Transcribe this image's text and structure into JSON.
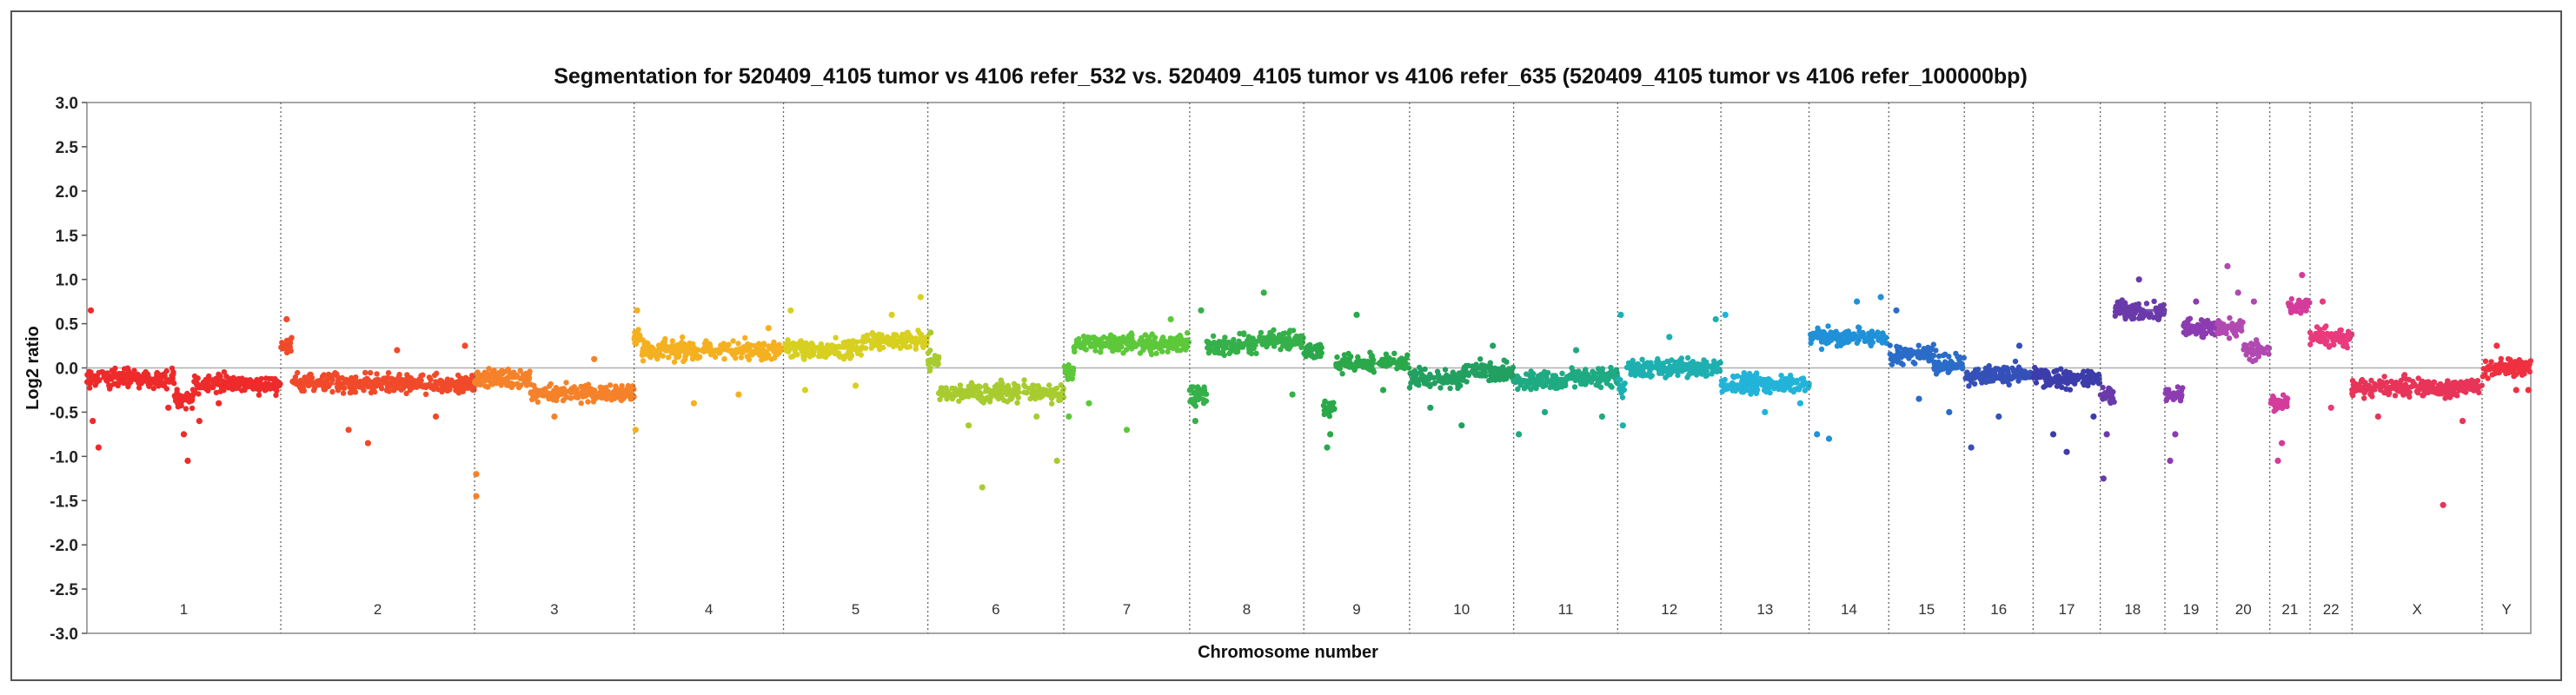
{
  "chart_data": {
    "type": "scatter",
    "title": "Segmentation for 520409_4105 tumor vs 4106 refer_532 vs. 520409_4105 tumor vs 4106 refer_635 (520409_4105 tumor vs 4106 refer_100000bp)",
    "xlabel": "Chromosome number",
    "ylabel": "Log2 ratio",
    "ylim": [
      -3.0,
      3.0
    ],
    "yticks": [
      "3.0",
      "2.5",
      "2.0",
      "1.5",
      "1.0",
      "0.5",
      "0.0",
      "-0.5",
      "-1.0",
      "-1.5",
      "-2.0",
      "-2.5",
      "-3.0"
    ],
    "grid": "vertical dotted chromosome boundaries",
    "chromosomes": [
      {
        "label": "1",
        "span": 231,
        "color": "#ee2a2a",
        "segments": [
          [
            0.0,
            0.45,
            -0.12
          ],
          [
            0.45,
            0.55,
            -0.35
          ],
          [
            0.55,
            1.0,
            -0.18
          ]
        ],
        "outliers": [
          [
            0.02,
            0.65
          ],
          [
            0.03,
            -0.6
          ],
          [
            0.06,
            -0.9
          ],
          [
            0.42,
            -0.45
          ],
          [
            0.5,
            -0.75
          ],
          [
            0.52,
            -1.05
          ],
          [
            0.58,
            -0.6
          ],
          [
            0.68,
            -0.4
          ]
        ]
      },
      {
        "label": "2",
        "span": 231,
        "color": "#f04a2a",
        "segments": [
          [
            0.0,
            0.06,
            0.25
          ],
          [
            0.06,
            1.0,
            -0.18
          ]
        ],
        "outliers": [
          [
            0.03,
            0.55
          ],
          [
            0.35,
            -0.7
          ],
          [
            0.45,
            -0.85
          ],
          [
            0.6,
            0.2
          ],
          [
            0.8,
            -0.55
          ],
          [
            0.95,
            0.25
          ]
        ]
      },
      {
        "label": "3",
        "span": 190,
        "color": "#f5822a",
        "segments": [
          [
            0.0,
            0.35,
            -0.12
          ],
          [
            0.35,
            1.0,
            -0.28
          ]
        ],
        "outliers": [
          [
            0.01,
            -1.2
          ],
          [
            0.01,
            -1.45
          ],
          [
            0.5,
            -0.55
          ],
          [
            0.75,
            0.1
          ]
        ]
      },
      {
        "label": "4",
        "span": 178,
        "color": "#f5b020",
        "segments": [
          [
            0.0,
            0.05,
            0.35
          ],
          [
            0.05,
            1.0,
            0.2
          ]
        ],
        "outliers": [
          [
            0.02,
            0.65
          ],
          [
            0.01,
            -0.7
          ],
          [
            0.4,
            -0.4
          ],
          [
            0.7,
            -0.3
          ],
          [
            0.9,
            0.45
          ]
        ]
      },
      {
        "label": "5",
        "span": 172,
        "color": "#d8d020",
        "segments": [
          [
            0.0,
            0.55,
            0.22
          ],
          [
            0.55,
            1.0,
            0.3
          ]
        ],
        "outliers": [
          [
            0.05,
            0.65
          ],
          [
            0.15,
            -0.25
          ],
          [
            0.5,
            -0.2
          ],
          [
            0.75,
            0.6
          ],
          [
            0.95,
            0.8
          ]
        ]
      },
      {
        "label": "6",
        "span": 162,
        "color": "#a8cc30",
        "segments": [
          [
            0.0,
            0.08,
            0.1
          ],
          [
            0.08,
            1.0,
            -0.28
          ]
        ],
        "outliers": [
          [
            0.02,
            0.4
          ],
          [
            0.3,
            -0.65
          ],
          [
            0.4,
            -1.35
          ],
          [
            0.8,
            -0.55
          ],
          [
            0.95,
            -1.05
          ]
        ]
      },
      {
        "label": "7",
        "span": 150,
        "color": "#5cc83a",
        "segments": [
          [
            0.0,
            0.08,
            -0.05
          ],
          [
            0.08,
            1.0,
            0.28
          ]
        ],
        "outliers": [
          [
            0.04,
            -0.55
          ],
          [
            0.2,
            -0.4
          ],
          [
            0.5,
            -0.7
          ],
          [
            0.85,
            0.55
          ]
        ]
      },
      {
        "label": "8",
        "span": 136,
        "color": "#35b04a",
        "segments": [
          [
            0.0,
            0.15,
            -0.3
          ],
          [
            0.15,
            0.6,
            0.25
          ],
          [
            0.6,
            1.0,
            0.32
          ]
        ],
        "outliers": [
          [
            0.05,
            -0.6
          ],
          [
            0.1,
            0.65
          ],
          [
            0.65,
            0.85
          ],
          [
            0.9,
            -0.3
          ]
        ]
      },
      {
        "label": "9",
        "span": 126,
        "color": "#2aa84a",
        "segments": [
          [
            0.0,
            0.18,
            0.2
          ],
          [
            0.18,
            0.3,
            -0.45
          ],
          [
            0.3,
            1.0,
            0.05
          ]
        ],
        "outliers": [
          [
            0.22,
            -0.9
          ],
          [
            0.25,
            -0.75
          ],
          [
            0.5,
            0.6
          ],
          [
            0.75,
            -0.25
          ]
        ]
      },
      {
        "label": "10",
        "span": 124,
        "color": "#22a060",
        "segments": [
          [
            0.0,
            0.5,
            -0.12
          ],
          [
            0.5,
            1.0,
            -0.05
          ]
        ],
        "outliers": [
          [
            0.2,
            -0.45
          ],
          [
            0.5,
            -0.65
          ],
          [
            0.8,
            0.25
          ]
        ]
      },
      {
        "label": "11",
        "span": 124,
        "color": "#1faa82",
        "segments": [
          [
            0.0,
            0.5,
            -0.15
          ],
          [
            0.5,
            1.0,
            -0.1
          ]
        ],
        "outliers": [
          [
            0.05,
            -0.75
          ],
          [
            0.3,
            -0.5
          ],
          [
            0.6,
            0.2
          ],
          [
            0.85,
            -0.55
          ]
        ]
      },
      {
        "label": "12",
        "span": 123,
        "color": "#1eb0b0",
        "segments": [
          [
            0.0,
            0.08,
            -0.2
          ],
          [
            0.08,
            1.0,
            0.0
          ]
        ],
        "outliers": [
          [
            0.03,
            0.6
          ],
          [
            0.05,
            -0.65
          ],
          [
            0.5,
            0.35
          ],
          [
            0.95,
            0.55
          ]
        ]
      },
      {
        "label": "13",
        "span": 105,
        "color": "#22b4d8",
        "segments": [
          [
            0.0,
            1.0,
            -0.18
          ]
        ],
        "outliers": [
          [
            0.05,
            0.6
          ],
          [
            0.5,
            -0.5
          ],
          [
            0.9,
            -0.4
          ]
        ]
      },
      {
        "label": "14",
        "span": 95,
        "color": "#2090d8",
        "segments": [
          [
            0.0,
            1.0,
            0.35
          ]
        ],
        "outliers": [
          [
            0.1,
            -0.75
          ],
          [
            0.25,
            -0.8
          ],
          [
            0.6,
            0.75
          ],
          [
            0.9,
            0.8
          ]
        ]
      },
      {
        "label": "15",
        "span": 90,
        "color": "#2a6cc8",
        "segments": [
          [
            0.0,
            0.6,
            0.15
          ],
          [
            0.6,
            1.0,
            0.05
          ]
        ],
        "outliers": [
          [
            0.1,
            0.65
          ],
          [
            0.4,
            -0.35
          ],
          [
            0.8,
            -0.5
          ]
        ]
      },
      {
        "label": "16",
        "span": 82,
        "color": "#3550b8",
        "segments": [
          [
            0.0,
            1.0,
            -0.08
          ]
        ],
        "outliers": [
          [
            0.1,
            -0.9
          ],
          [
            0.5,
            -0.55
          ],
          [
            0.8,
            0.25
          ]
        ]
      },
      {
        "label": "17",
        "span": 80,
        "color": "#3c3caa",
        "segments": [
          [
            0.0,
            1.0,
            -0.12
          ]
        ],
        "outliers": [
          [
            0.3,
            -0.75
          ],
          [
            0.5,
            -0.95
          ],
          [
            0.9,
            -0.55
          ]
        ]
      },
      {
        "label": "18",
        "span": 77,
        "color": "#6a3aaa",
        "segments": [
          [
            0.0,
            0.22,
            -0.3
          ],
          [
            0.22,
            1.0,
            0.65
          ]
        ],
        "outliers": [
          [
            0.05,
            -1.25
          ],
          [
            0.1,
            -0.75
          ],
          [
            0.6,
            1.0
          ],
          [
            0.9,
            0.55
          ]
        ]
      },
      {
        "label": "19",
        "span": 62,
        "color": "#8c3cb0",
        "segments": [
          [
            0.0,
            0.35,
            -0.3
          ],
          [
            0.35,
            1.0,
            0.45
          ]
        ],
        "outliers": [
          [
            0.1,
            -1.05
          ],
          [
            0.2,
            -0.75
          ],
          [
            0.6,
            0.75
          ]
        ]
      },
      {
        "label": "20",
        "span": 63,
        "color": "#b04ab0",
        "segments": [
          [
            0.0,
            0.5,
            0.45
          ],
          [
            0.5,
            1.0,
            0.2
          ]
        ],
        "outliers": [
          [
            0.2,
            1.15
          ],
          [
            0.4,
            0.85
          ],
          [
            0.7,
            0.75
          ]
        ]
      },
      {
        "label": "21",
        "span": 48,
        "color": "#d43c9c",
        "segments": [
          [
            0.0,
            0.45,
            -0.4
          ],
          [
            0.45,
            1.0,
            0.7
          ]
        ],
        "outliers": [
          [
            0.2,
            -1.05
          ],
          [
            0.3,
            -0.85
          ],
          [
            0.8,
            1.05
          ]
        ]
      },
      {
        "label": "22",
        "span": 50,
        "color": "#e83a7c",
        "segments": [
          [
            0.0,
            1.0,
            0.35
          ]
        ],
        "outliers": [
          [
            0.3,
            0.75
          ],
          [
            0.5,
            -0.45
          ],
          [
            0.8,
            0.25
          ]
        ]
      },
      {
        "label": "X",
        "span": 155,
        "color": "#e83458",
        "segments": [
          [
            0.0,
            1.0,
            -0.22
          ]
        ],
        "outliers": [
          [
            0.2,
            -0.55
          ],
          [
            0.7,
            -1.55
          ],
          [
            0.85,
            -0.6
          ]
        ]
      },
      {
        "label": "Y",
        "span": 58,
        "color": "#ee3040",
        "segments": [
          [
            0.0,
            1.0,
            0.0
          ]
        ],
        "outliers": [
          [
            0.3,
            0.25
          ],
          [
            0.7,
            -0.25
          ],
          [
            0.95,
            -0.25
          ]
        ]
      }
    ]
  }
}
